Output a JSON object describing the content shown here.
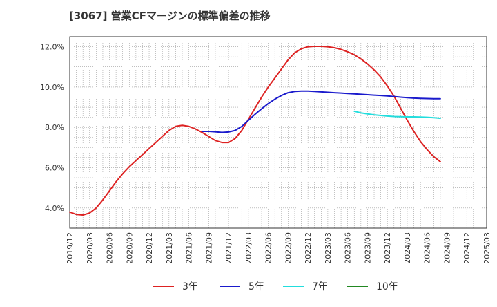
{
  "chart_data": {
    "type": "line",
    "title": "[3067]  営業CFマージンの標準偏差の推移",
    "xlabel": "",
    "ylabel": "",
    "x_ticks": [
      "2019/12",
      "2020/03",
      "2020/06",
      "2020/09",
      "2020/12",
      "2021/03",
      "2021/06",
      "2021/09",
      "2021/12",
      "2022/03",
      "2022/06",
      "2022/09",
      "2022/12",
      "2023/03",
      "2023/06",
      "2023/09",
      "2023/12",
      "2024/03",
      "2024/06",
      "2024/09",
      "2024/12",
      "2025/03"
    ],
    "y_ticks": [
      4.0,
      6.0,
      8.0,
      10.0,
      12.0
    ],
    "y_tick_labels": [
      "4.0%",
      "6.0%",
      "8.0%",
      "10.0%",
      "12.0%"
    ],
    "ylim": [
      3.0,
      12.5
    ],
    "grid": true,
    "legend_position": "bottom",
    "series": [
      {
        "name": "3年",
        "color": "#dd2222",
        "points": [
          [
            "2019/12",
            3.8
          ],
          [
            "2020/01",
            3.68
          ],
          [
            "2020/02",
            3.65
          ],
          [
            "2020/03",
            3.75
          ],
          [
            "2020/04",
            4.0
          ],
          [
            "2020/05",
            4.4
          ],
          [
            "2020/06",
            4.85
          ],
          [
            "2020/07",
            5.3
          ],
          [
            "2020/08",
            5.7
          ],
          [
            "2020/09",
            6.05
          ],
          [
            "2020/10",
            6.35
          ],
          [
            "2020/11",
            6.65
          ],
          [
            "2020/12",
            6.95
          ],
          [
            "2021/01",
            7.25
          ],
          [
            "2021/02",
            7.55
          ],
          [
            "2021/03",
            7.85
          ],
          [
            "2021/04",
            8.05
          ],
          [
            "2021/05",
            8.1
          ],
          [
            "2021/06",
            8.05
          ],
          [
            "2021/07",
            7.92
          ],
          [
            "2021/08",
            7.75
          ],
          [
            "2021/09",
            7.55
          ],
          [
            "2021/10",
            7.35
          ],
          [
            "2021/11",
            7.25
          ],
          [
            "2021/12",
            7.25
          ],
          [
            "2022/01",
            7.45
          ],
          [
            "2022/02",
            7.85
          ],
          [
            "2022/03",
            8.4
          ],
          [
            "2022/04",
            8.95
          ],
          [
            "2022/05",
            9.5
          ],
          [
            "2022/06",
            10.0
          ],
          [
            "2022/07",
            10.45
          ],
          [
            "2022/08",
            10.9
          ],
          [
            "2022/09",
            11.35
          ],
          [
            "2022/10",
            11.7
          ],
          [
            "2022/11",
            11.9
          ],
          [
            "2022/12",
            12.0
          ],
          [
            "2023/01",
            12.02
          ],
          [
            "2023/02",
            12.02
          ],
          [
            "2023/03",
            12.0
          ],
          [
            "2023/04",
            11.95
          ],
          [
            "2023/05",
            11.87
          ],
          [
            "2023/06",
            11.75
          ],
          [
            "2023/07",
            11.6
          ],
          [
            "2023/08",
            11.4
          ],
          [
            "2023/09",
            11.15
          ],
          [
            "2023/10",
            10.85
          ],
          [
            "2023/11",
            10.5
          ],
          [
            "2023/12",
            10.05
          ],
          [
            "2024/01",
            9.55
          ],
          [
            "2024/02",
            8.95
          ],
          [
            "2024/03",
            8.35
          ],
          [
            "2024/04",
            7.8
          ],
          [
            "2024/05",
            7.3
          ],
          [
            "2024/06",
            6.9
          ],
          [
            "2024/07",
            6.55
          ],
          [
            "2024/08",
            6.3
          ]
        ]
      },
      {
        "name": "5年",
        "color": "#1a1acc",
        "points": [
          [
            "2021/08",
            7.8
          ],
          [
            "2021/09",
            7.8
          ],
          [
            "2021/10",
            7.78
          ],
          [
            "2021/11",
            7.75
          ],
          [
            "2021/12",
            7.77
          ],
          [
            "2022/01",
            7.85
          ],
          [
            "2022/02",
            8.05
          ],
          [
            "2022/03",
            8.35
          ],
          [
            "2022/04",
            8.65
          ],
          [
            "2022/05",
            8.92
          ],
          [
            "2022/06",
            9.18
          ],
          [
            "2022/07",
            9.4
          ],
          [
            "2022/08",
            9.58
          ],
          [
            "2022/09",
            9.72
          ],
          [
            "2022/10",
            9.78
          ],
          [
            "2022/11",
            9.8
          ],
          [
            "2022/12",
            9.8
          ],
          [
            "2023/01",
            9.78
          ],
          [
            "2023/02",
            9.76
          ],
          [
            "2023/03",
            9.74
          ],
          [
            "2023/04",
            9.72
          ],
          [
            "2023/05",
            9.7
          ],
          [
            "2023/06",
            9.68
          ],
          [
            "2023/07",
            9.66
          ],
          [
            "2023/08",
            9.64
          ],
          [
            "2023/09",
            9.62
          ],
          [
            "2023/10",
            9.6
          ],
          [
            "2023/11",
            9.58
          ],
          [
            "2023/12",
            9.56
          ],
          [
            "2024/01",
            9.53
          ],
          [
            "2024/02",
            9.5
          ],
          [
            "2024/03",
            9.47
          ],
          [
            "2024/04",
            9.45
          ],
          [
            "2024/05",
            9.44
          ],
          [
            "2024/06",
            9.43
          ],
          [
            "2024/07",
            9.42
          ],
          [
            "2024/08",
            9.42
          ]
        ]
      },
      {
        "name": "7年",
        "color": "#22dddd",
        "points": [
          [
            "2023/07",
            8.8
          ],
          [
            "2023/08",
            8.72
          ],
          [
            "2023/09",
            8.67
          ],
          [
            "2023/10",
            8.62
          ],
          [
            "2023/11",
            8.59
          ],
          [
            "2023/12",
            8.56
          ],
          [
            "2024/01",
            8.54
          ],
          [
            "2024/02",
            8.53
          ],
          [
            "2024/03",
            8.52
          ],
          [
            "2024/04",
            8.52
          ],
          [
            "2024/05",
            8.51
          ],
          [
            "2024/06",
            8.5
          ],
          [
            "2024/07",
            8.48
          ],
          [
            "2024/08",
            8.45
          ]
        ]
      },
      {
        "name": "10年",
        "color": "#228822",
        "points": []
      }
    ]
  }
}
